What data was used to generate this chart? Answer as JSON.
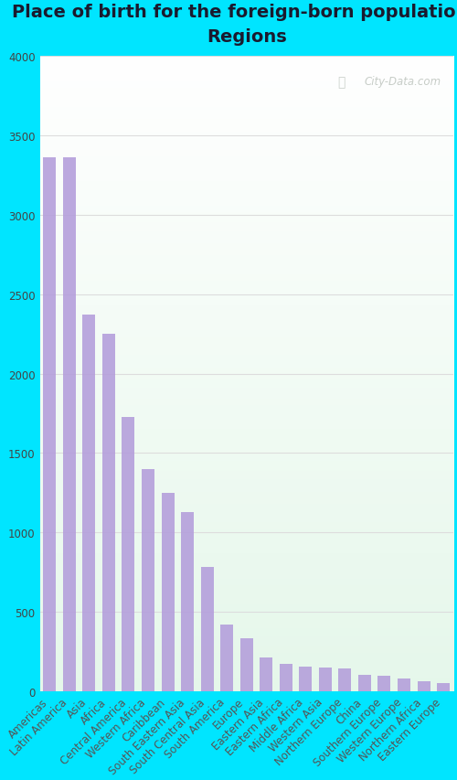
{
  "title": "Place of birth for the foreign-born population -\nRegions",
  "categories": [
    "Americas",
    "Latin America",
    "Asia",
    "Africa",
    "Central America",
    "Western Africa",
    "Caribbean",
    "South Eastern Asia",
    "South Central Asia",
    "South America",
    "Europe",
    "Eastern Asia",
    "Eastern Africa",
    "Middle Africa",
    "Western Asia",
    "Northern Europe",
    "China",
    "Southern Europe",
    "Western Europe",
    "Northern Africa",
    "Eastern Europe"
  ],
  "values": [
    3360,
    3360,
    2370,
    2250,
    1730,
    1400,
    1250,
    1130,
    780,
    420,
    335,
    210,
    170,
    155,
    150,
    145,
    105,
    100,
    80,
    65,
    50
  ],
  "bar_color": "#b39ddb",
  "figure_bg": "#00e5ff",
  "title_color": "#1a1a2e",
  "title_fontsize": 14,
  "tick_fontsize": 8.5,
  "ytick_color": "#444444",
  "xtick_color": "#555555",
  "ylim": [
    0,
    4000
  ],
  "yticks": [
    0,
    500,
    1000,
    1500,
    2000,
    2500,
    3000,
    3500,
    4000
  ],
  "watermark": "City-Data.com",
  "grid_color": "#dddddd"
}
